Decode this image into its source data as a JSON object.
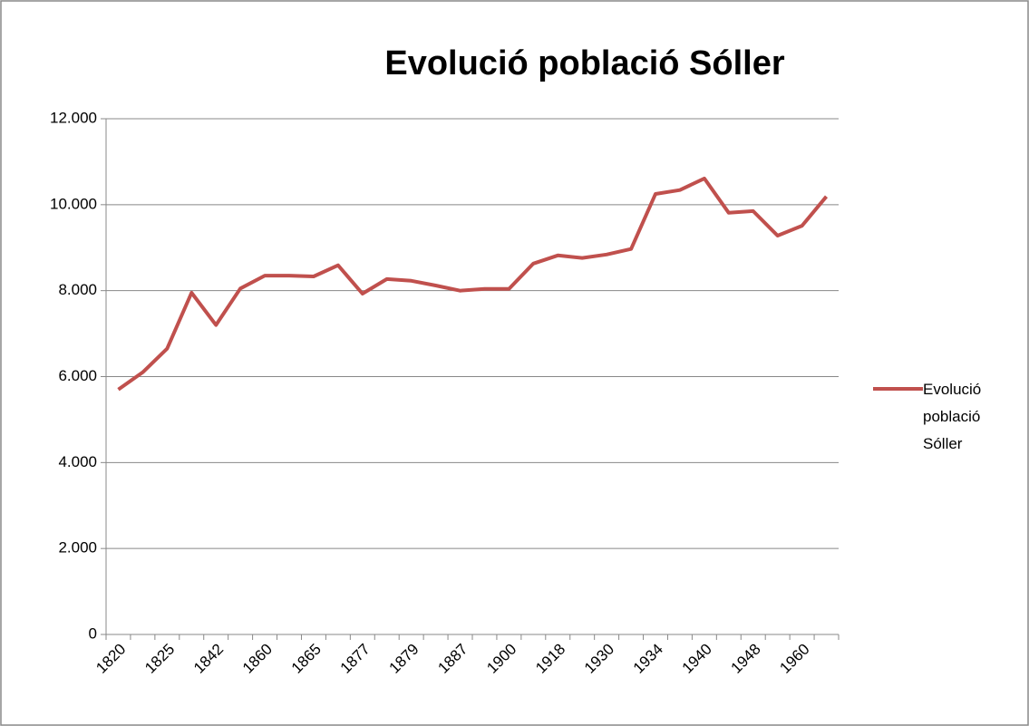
{
  "chart_data": {
    "type": "line",
    "title": "Evolució població Sóller",
    "categories": [
      "1820",
      null,
      "1825",
      null,
      "1842",
      null,
      "1860",
      null,
      "1865",
      null,
      "1877",
      null,
      "1879",
      null,
      "1887",
      null,
      "1900",
      null,
      "1918",
      null,
      "1930",
      null,
      "1934",
      null,
      "1940",
      null,
      "1948",
      null,
      "1960",
      null
    ],
    "series": [
      {
        "name": "Evolució població Sóller",
        "color": "#c0504d",
        "values": [
          5700,
          6100,
          6650,
          7950,
          7200,
          8050,
          8350,
          8350,
          8330,
          8590,
          7930,
          8270,
          8230,
          8120,
          8000,
          8040,
          8040,
          8630,
          8820,
          8760,
          8840,
          8970,
          10250,
          10340,
          10610,
          9810,
          9850,
          9280,
          9510,
          10190
        ]
      }
    ],
    "ylim": [
      0,
      12000
    ],
    "yticks": [
      0,
      {
        "value": 2000,
        "label": "2.000"
      },
      {
        "value": 4000,
        "label": "4.000"
      },
      {
        "value": 6000,
        "label": "6.000"
      },
      {
        "value": 8000,
        "label": "8.000"
      },
      {
        "value": 10000,
        "label": "10.000"
      },
      {
        "value": 12000,
        "label": "12.000"
      }
    ],
    "grid": true,
    "legend": "right"
  }
}
